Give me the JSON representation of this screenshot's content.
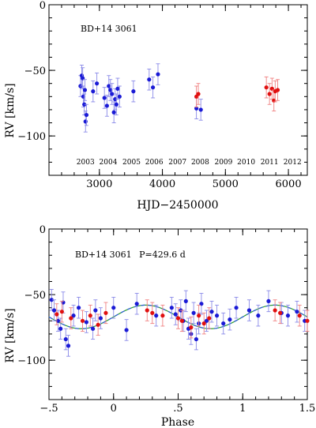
{
  "chart_data": [
    {
      "type": "scatter",
      "title": "BD+14  3061",
      "xlabel": "HJD−2450000",
      "ylabel": "RV  [km/s]",
      "xlim": [
        2200,
        6300
      ],
      "ylim": [
        -130,
        0
      ],
      "x_ticks": [
        3000,
        4000,
        5000,
        6000
      ],
      "y_ticks": [
        0,
        -50,
        -100
      ],
      "year_labels": [
        {
          "label": "2003",
          "x": 2780
        },
        {
          "label": "2004",
          "x": 3140
        },
        {
          "label": "2005",
          "x": 3510
        },
        {
          "label": "2006",
          "x": 3870
        },
        {
          "label": "2007",
          "x": 4240
        },
        {
          "label": "2008",
          "x": 4600
        },
        {
          "label": "2009",
          "x": 4970
        },
        {
          "label": "2010",
          "x": 5330
        },
        {
          "label": "2011",
          "x": 5700
        },
        {
          "label": "2012",
          "x": 6065
        }
      ],
      "series": [
        {
          "color": "#1a1ad6",
          "points": [
            {
              "x": 2700,
              "y": -62,
              "err": 8
            },
            {
              "x": 2720,
              "y": -54,
              "err": 8
            },
            {
              "x": 2735,
              "y": -56,
              "err": 8
            },
            {
              "x": 2745,
              "y": -70,
              "err": 8
            },
            {
              "x": 2760,
              "y": -76,
              "err": 8
            },
            {
              "x": 2770,
              "y": -65,
              "err": 8
            },
            {
              "x": 2780,
              "y": -89,
              "err": 8
            },
            {
              "x": 2795,
              "y": -84,
              "err": 8
            },
            {
              "x": 2900,
              "y": -66,
              "err": 8
            },
            {
              "x": 2960,
              "y": -60,
              "err": 8
            },
            {
              "x": 3080,
              "y": -71,
              "err": 8
            },
            {
              "x": 3120,
              "y": -77,
              "err": 8
            },
            {
              "x": 3150,
              "y": -62,
              "err": 8
            },
            {
              "x": 3175,
              "y": -65,
              "err": 8
            },
            {
              "x": 3200,
              "y": -68,
              "err": 8
            },
            {
              "x": 3230,
              "y": -82,
              "err": 8
            },
            {
              "x": 3250,
              "y": -72,
              "err": 8
            },
            {
              "x": 3270,
              "y": -76,
              "err": 8
            },
            {
              "x": 3290,
              "y": -64,
              "err": 8
            },
            {
              "x": 3320,
              "y": -70,
              "err": 8
            },
            {
              "x": 3540,
              "y": -66,
              "err": 8
            },
            {
              "x": 3790,
              "y": -57,
              "err": 8
            },
            {
              "x": 3850,
              "y": -63,
              "err": 8
            },
            {
              "x": 3930,
              "y": -53,
              "err": 8
            },
            {
              "x": 4540,
              "y": -79,
              "err": 8
            },
            {
              "x": 4610,
              "y": -80,
              "err": 8
            }
          ]
        },
        {
          "color": "#e01010",
          "points": [
            {
              "x": 4540,
              "y": -70,
              "err": 8
            },
            {
              "x": 4570,
              "y": -68,
              "err": 8
            },
            {
              "x": 5650,
              "y": -63,
              "err": 8
            },
            {
              "x": 5700,
              "y": -68,
              "err": 8
            },
            {
              "x": 5740,
              "y": -64,
              "err": 8
            },
            {
              "x": 5770,
              "y": -73,
              "err": 8
            },
            {
              "x": 5790,
              "y": -66,
              "err": 8
            },
            {
              "x": 5830,
              "y": -65,
              "err": 8
            }
          ]
        }
      ]
    },
    {
      "type": "scatter",
      "title": "BD+14  3061",
      "title_period": "P=429.6  d",
      "xlabel": "Phase",
      "ylabel": "RV  [km/s]",
      "xlim": [
        -0.5,
        1.5
      ],
      "ylim": [
        -130,
        0
      ],
      "x_ticks": [
        {
          "value": -0.5,
          "label": "−.5"
        },
        {
          "value": 0,
          "label": "0"
        },
        {
          "value": 0.5,
          "label": ".5"
        },
        {
          "value": 1,
          "label": "1"
        },
        {
          "value": 1.5,
          "label": "1.5"
        }
      ],
      "y_ticks": [
        0,
        -50,
        -100
      ],
      "model_curve": {
        "mean": -67,
        "amplitude": 9,
        "peak_phase": 0.25,
        "color": "#2ea02e",
        "dash_color": "#3060d8"
      },
      "series": [
        {
          "color": "#1a1ad6",
          "points": [
            {
              "x": -0.48,
              "y": -54,
              "err": 8
            },
            {
              "x": -0.46,
              "y": -62,
              "err": 8
            },
            {
              "x": -0.43,
              "y": -70,
              "err": 8
            },
            {
              "x": -0.41,
              "y": -76,
              "err": 8
            },
            {
              "x": -0.39,
              "y": -56,
              "err": 8
            },
            {
              "x": -0.37,
              "y": -84,
              "err": 8
            },
            {
              "x": -0.35,
              "y": -89,
              "err": 8
            },
            {
              "x": -0.31,
              "y": -66,
              "err": 8
            },
            {
              "x": -0.27,
              "y": -60,
              "err": 8
            },
            {
              "x": -0.21,
              "y": -71,
              "err": 8
            },
            {
              "x": -0.16,
              "y": -76,
              "err": 8
            },
            {
              "x": -0.14,
              "y": -62,
              "err": 8
            },
            {
              "x": -0.1,
              "y": -68,
              "err": 8
            },
            {
              "x": 0.0,
              "y": -60,
              "err": 8
            },
            {
              "x": 0.1,
              "y": -77,
              "err": 8
            },
            {
              "x": 0.18,
              "y": -57,
              "err": 8
            },
            {
              "x": 0.33,
              "y": -66,
              "err": 8
            },
            {
              "x": 0.45,
              "y": -60,
              "err": 8
            },
            {
              "x": 0.48,
              "y": -65,
              "err": 8
            },
            {
              "x": 0.52,
              "y": -62,
              "err": 8
            },
            {
              "x": 0.54,
              "y": -70,
              "err": 8
            },
            {
              "x": 0.56,
              "y": -55,
              "err": 8
            },
            {
              "x": 0.58,
              "y": -76,
              "err": 8
            },
            {
              "x": 0.6,
              "y": -80,
              "err": 8
            },
            {
              "x": 0.62,
              "y": -64,
              "err": 8
            },
            {
              "x": 0.64,
              "y": -84,
              "err": 8
            },
            {
              "x": 0.66,
              "y": -72,
              "err": 8
            },
            {
              "x": 0.68,
              "y": -57,
              "err": 8
            },
            {
              "x": 0.72,
              "y": -70,
              "err": 8
            },
            {
              "x": 0.76,
              "y": -63,
              "err": 8
            },
            {
              "x": 0.8,
              "y": -66,
              "err": 8
            },
            {
              "x": 0.85,
              "y": -72,
              "err": 8
            },
            {
              "x": 0.9,
              "y": -69,
              "err": 8
            },
            {
              "x": 0.95,
              "y": -60,
              "err": 8
            },
            {
              "x": 1.05,
              "y": -62,
              "err": 8
            },
            {
              "x": 1.12,
              "y": -66,
              "err": 8
            },
            {
              "x": 1.2,
              "y": -55,
              "err": 8
            },
            {
              "x": 1.3,
              "y": -64,
              "err": 8
            },
            {
              "x": 1.35,
              "y": -66,
              "err": 8
            },
            {
              "x": 1.42,
              "y": -63,
              "err": 8
            },
            {
              "x": 1.48,
              "y": -70,
              "err": 8
            }
          ]
        },
        {
          "color": "#e01010",
          "points": [
            {
              "x": -0.44,
              "y": -65,
              "err": 8
            },
            {
              "x": -0.4,
              "y": -63,
              "err": 8
            },
            {
              "x": -0.33,
              "y": -68,
              "err": 8
            },
            {
              "x": -0.24,
              "y": -70,
              "err": 8
            },
            {
              "x": -0.18,
              "y": -66,
              "err": 8
            },
            {
              "x": -0.12,
              "y": -73,
              "err": 8
            },
            {
              "x": -0.06,
              "y": -64,
              "err": 8
            },
            {
              "x": 0.26,
              "y": -62,
              "err": 8
            },
            {
              "x": 0.3,
              "y": -64,
              "err": 8
            },
            {
              "x": 0.38,
              "y": -66,
              "err": 8
            },
            {
              "x": 0.5,
              "y": -68,
              "err": 8
            },
            {
              "x": 0.53,
              "y": -70,
              "err": 8
            },
            {
              "x": 0.6,
              "y": -75,
              "err": 8
            },
            {
              "x": 0.66,
              "y": -66,
              "err": 8
            },
            {
              "x": 0.7,
              "y": -72,
              "err": 8
            },
            {
              "x": 0.74,
              "y": -68,
              "err": 8
            },
            {
              "x": 1.25,
              "y": -62,
              "err": 8
            },
            {
              "x": 1.29,
              "y": -64,
              "err": 8
            },
            {
              "x": 1.44,
              "y": -66,
              "err": 8
            },
            {
              "x": 1.5,
              "y": -70,
              "err": 8
            }
          ]
        }
      ]
    }
  ]
}
